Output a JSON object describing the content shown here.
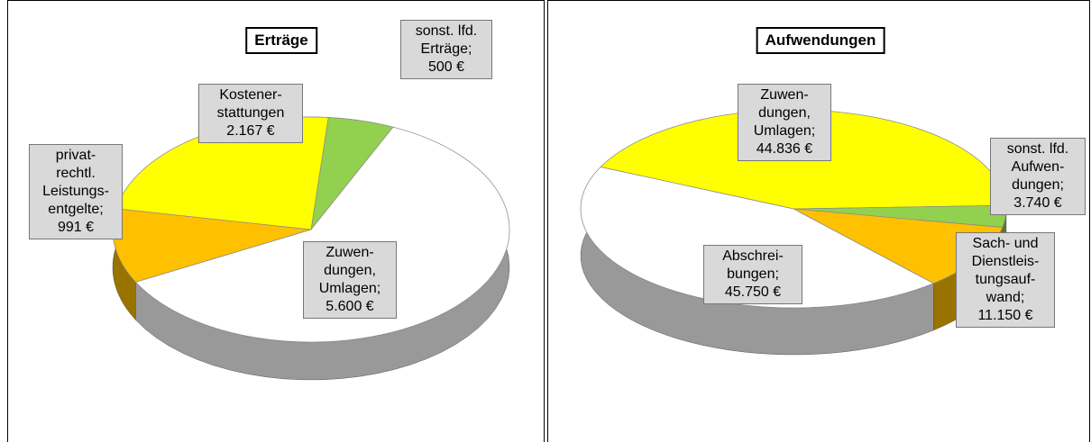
{
  "chart_data": [
    {
      "type": "pie",
      "title": "Erträge",
      "categories": [
        "sonst. lfd.\nErträge;",
        "Zuwen-\ndungen,\nUmlagen;",
        "privat-\nrechtl.\nLeistungs-\nentgelte;",
        "Kostener-\nstattungen"
      ],
      "values": [
        500,
        5600,
        991,
        2167
      ],
      "value_labels": [
        "500 €",
        "5.600 €",
        "991 €",
        "2.167 €"
      ],
      "colors": [
        "#92d050",
        "#ffffff",
        "#ffc000",
        "#ffff00"
      ]
    },
    {
      "type": "pie",
      "title": "Aufwendungen",
      "categories": [
        "Zuwen-\ndungen,\nUmlagen;",
        "sonst. lfd.\nAufwen-\ndungen;",
        "Sach- und\nDienstleis-\ntungsauf-\nwand;",
        "Abschrei-\nbungen;"
      ],
      "values": [
        44836,
        3740,
        11150,
        45750
      ],
      "value_labels": [
        "44.836 €",
        "3.740 €",
        "11.150 €",
        "45.750 €"
      ],
      "colors": [
        "#ffff00",
        "#92d050",
        "#ffc000",
        "#ffffff"
      ]
    }
  ]
}
